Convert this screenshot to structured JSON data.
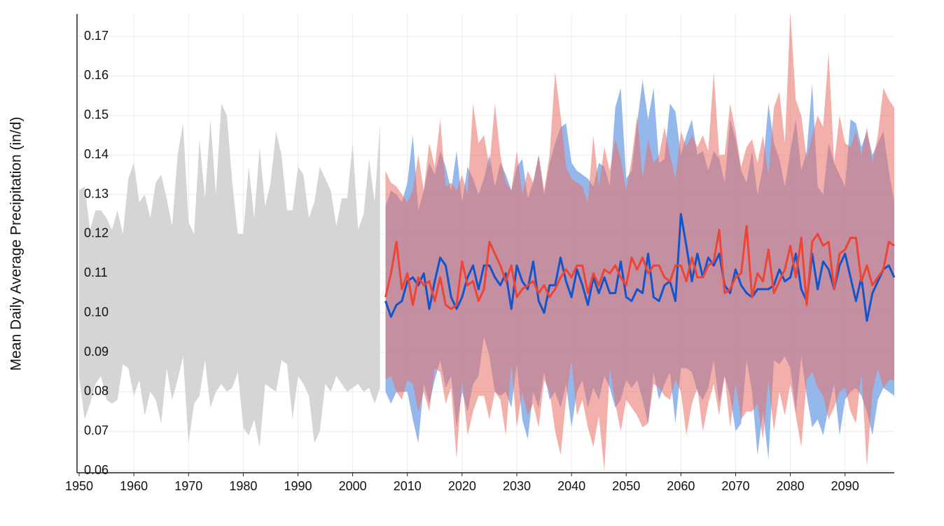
{
  "chart_data": {
    "type": "area",
    "y_label": "Mean Daily Average Precipitation (in/d)",
    "xlim": [
      1950,
      2099
    ],
    "ylim": [
      0.0595,
      0.1757
    ],
    "xticks": [
      1950,
      1960,
      1970,
      1980,
      1990,
      2000,
      2010,
      2020,
      2030,
      2040,
      2050,
      2060,
      2070,
      2080,
      2090
    ],
    "yticks": [
      0.06,
      0.07,
      0.08,
      0.09,
      {
        "value": 0.1,
        "label": "0.10"
      },
      0.11,
      0.12,
      0.13,
      0.14,
      0.15,
      0.16,
      0.17
    ],
    "grid": true,
    "series": [
      {
        "band_color": "#d5d5d5",
        "x": [
          1950,
          1951,
          1952,
          1953,
          1954,
          1955,
          1956,
          1957,
          1958,
          1959,
          1960,
          1961,
          1962,
          1963,
          1964,
          1965,
          1966,
          1967,
          1968,
          1969,
          1970,
          1971,
          1972,
          1973,
          1974,
          1975,
          1976,
          1977,
          1978,
          1979,
          1980,
          1981,
          1982,
          1983,
          1984,
          1985,
          1986,
          1987,
          1988,
          1989,
          1990,
          1991,
          1992,
          1993,
          1994,
          1995,
          1996,
          1997,
          1998,
          1999,
          2000,
          2001,
          2002,
          2003,
          2004,
          2005
        ],
        "upper": [
          0.131,
          0.132,
          0.121,
          0.126,
          0.126,
          0.124,
          0.121,
          0.126,
          0.12,
          0.134,
          0.138,
          0.128,
          0.13,
          0.124,
          0.133,
          0.135,
          0.129,
          0.122,
          0.14,
          0.148,
          0.123,
          0.12,
          0.144,
          0.129,
          0.149,
          0.13,
          0.153,
          0.15,
          0.133,
          0.12,
          0.12,
          0.137,
          0.124,
          0.142,
          0.127,
          0.133,
          0.146,
          0.14,
          0.126,
          0.126,
          0.137,
          0.135,
          0.124,
          0.128,
          0.137,
          0.134,
          0.131,
          0.122,
          0.129,
          0.129,
          0.143,
          0.121,
          0.125,
          0.139,
          0.128,
          0.148
        ],
        "lower": [
          0.084,
          0.073,
          0.077,
          0.082,
          0.084,
          0.078,
          0.077,
          0.078,
          0.087,
          0.086,
          0.079,
          0.083,
          0.074,
          0.08,
          0.078,
          0.072,
          0.086,
          0.078,
          0.083,
          0.089,
          0.067,
          0.077,
          0.079,
          0.088,
          0.076,
          0.08,
          0.082,
          0.08,
          0.081,
          0.085,
          0.071,
          0.069,
          0.073,
          0.066,
          0.082,
          0.081,
          0.08,
          0.088,
          0.087,
          0.073,
          0.084,
          0.082,
          0.079,
          0.067,
          0.07,
          0.082,
          0.08,
          0.084,
          0.082,
          0.08,
          0.081,
          0.082,
          0.08,
          0.081,
          0.077,
          0.081
        ]
      },
      {
        "band_color": "#8fb4ea",
        "color": "#1155cc",
        "x": [
          2006,
          2007,
          2008,
          2009,
          2010,
          2011,
          2012,
          2013,
          2014,
          2015,
          2016,
          2017,
          2018,
          2019,
          2020,
          2021,
          2022,
          2023,
          2024,
          2025,
          2026,
          2027,
          2028,
          2029,
          2030,
          2031,
          2032,
          2033,
          2034,
          2035,
          2036,
          2037,
          2038,
          2039,
          2040,
          2041,
          2042,
          2043,
          2044,
          2045,
          2046,
          2047,
          2048,
          2049,
          2050,
          2051,
          2052,
          2053,
          2054,
          2055,
          2056,
          2057,
          2058,
          2059,
          2060,
          2061,
          2062,
          2063,
          2064,
          2065,
          2066,
          2067,
          2068,
          2069,
          2070,
          2071,
          2072,
          2073,
          2074,
          2075,
          2076,
          2077,
          2078,
          2079,
          2080,
          2081,
          2082,
          2083,
          2084,
          2085,
          2086,
          2087,
          2088,
          2089,
          2090,
          2091,
          2092,
          2093,
          2094,
          2095,
          2096,
          2097,
          2098,
          2099
        ],
        "upper": [
          0.127,
          0.131,
          0.13,
          0.128,
          0.133,
          0.145,
          0.126,
          0.131,
          0.138,
          0.135,
          0.141,
          0.137,
          0.131,
          0.141,
          0.128,
          0.137,
          0.134,
          0.13,
          0.134,
          0.14,
          0.132,
          0.138,
          0.135,
          0.131,
          0.137,
          0.139,
          0.129,
          0.133,
          0.14,
          0.13,
          0.138,
          0.143,
          0.147,
          0.148,
          0.138,
          0.136,
          0.135,
          0.134,
          0.132,
          0.138,
          0.137,
          0.132,
          0.152,
          0.157,
          0.134,
          0.136,
          0.148,
          0.159,
          0.149,
          0.157,
          0.138,
          0.139,
          0.153,
          0.151,
          0.14,
          0.145,
          0.149,
          0.14,
          0.141,
          0.136,
          0.141,
          0.139,
          0.133,
          0.149,
          0.144,
          0.136,
          0.133,
          0.141,
          0.13,
          0.137,
          0.153,
          0.143,
          0.139,
          0.132,
          0.141,
          0.149,
          0.136,
          0.141,
          0.158,
          0.132,
          0.13,
          0.143,
          0.138,
          0.135,
          0.132,
          0.149,
          0.148,
          0.142,
          0.146,
          0.14,
          0.143,
          0.146,
          0.136,
          0.128
        ],
        "lower": [
          0.08,
          0.077,
          0.08,
          0.08,
          0.08,
          0.073,
          0.067,
          0.082,
          0.077,
          0.083,
          0.088,
          0.081,
          0.084,
          0.071,
          0.08,
          0.075,
          0.082,
          0.084,
          0.094,
          0.089,
          0.08,
          0.079,
          0.08,
          0.076,
          0.087,
          0.073,
          0.068,
          0.08,
          0.076,
          0.085,
          0.078,
          0.08,
          0.076,
          0.082,
          0.071,
          0.08,
          0.083,
          0.076,
          0.081,
          0.078,
          0.084,
          0.081,
          0.076,
          0.078,
          0.083,
          0.081,
          0.083,
          0.078,
          0.072,
          0.085,
          0.078,
          0.082,
          0.085,
          0.072,
          0.086,
          0.086,
          0.085,
          0.08,
          0.078,
          0.081,
          0.088,
          0.077,
          0.084,
          0.079,
          0.07,
          0.072,
          0.088,
          0.08,
          0.064,
          0.075,
          0.063,
          0.088,
          0.087,
          0.089,
          0.086,
          0.075,
          0.089,
          0.079,
          0.071,
          0.073,
          0.069,
          0.076,
          0.082,
          0.069,
          0.078,
          0.08,
          0.081,
          0.079,
          0.075,
          0.069,
          0.078,
          0.081,
          0.08,
          0.079
        ],
        "values": [
          0.103,
          0.099,
          0.102,
          0.103,
          0.108,
          0.109,
          0.107,
          0.11,
          0.101,
          0.108,
          0.114,
          0.112,
          0.104,
          0.101,
          0.104,
          0.109,
          0.112,
          0.106,
          0.112,
          0.112,
          0.109,
          0.107,
          0.11,
          0.101,
          0.112,
          0.108,
          0.106,
          0.113,
          0.103,
          0.1,
          0.107,
          0.107,
          0.114,
          0.108,
          0.104,
          0.111,
          0.107,
          0.102,
          0.109,
          0.105,
          0.109,
          0.105,
          0.105,
          0.113,
          0.104,
          0.103,
          0.106,
          0.105,
          0.115,
          0.104,
          0.103,
          0.107,
          0.108,
          0.103,
          0.125,
          0.117,
          0.108,
          0.115,
          0.109,
          0.114,
          0.112,
          0.115,
          0.107,
          0.105,
          0.111,
          0.107,
          0.105,
          0.104,
          0.106,
          0.106,
          0.106,
          0.107,
          0.111,
          0.108,
          0.109,
          0.115,
          0.106,
          0.103,
          0.115,
          0.106,
          0.113,
          0.111,
          0.106,
          0.112,
          0.115,
          0.109,
          0.103,
          0.109,
          0.098,
          0.105,
          0.108,
          0.111,
          0.112,
          0.109
        ]
      },
      {
        "band_color": "#e96e64",
        "color": "#ee4433",
        "x": [
          2006,
          2007,
          2008,
          2009,
          2010,
          2011,
          2012,
          2013,
          2014,
          2015,
          2016,
          2017,
          2018,
          2019,
          2020,
          2021,
          2022,
          2023,
          2024,
          2025,
          2026,
          2027,
          2028,
          2029,
          2030,
          2031,
          2032,
          2033,
          2034,
          2035,
          2036,
          2037,
          2038,
          2039,
          2040,
          2041,
          2042,
          2043,
          2044,
          2045,
          2046,
          2047,
          2048,
          2049,
          2050,
          2051,
          2052,
          2053,
          2054,
          2055,
          2056,
          2057,
          2058,
          2059,
          2060,
          2061,
          2062,
          2063,
          2064,
          2065,
          2066,
          2067,
          2068,
          2069,
          2070,
          2071,
          2072,
          2073,
          2074,
          2075,
          2076,
          2077,
          2078,
          2079,
          2080,
          2081,
          2082,
          2083,
          2084,
          2085,
          2086,
          2087,
          2088,
          2089,
          2090,
          2091,
          2092,
          2093,
          2094,
          2095,
          2096,
          2097,
          2098,
          2099
        ],
        "upper": [
          0.136,
          0.133,
          0.132,
          0.13,
          0.128,
          0.131,
          0.14,
          0.131,
          0.143,
          0.137,
          0.149,
          0.132,
          0.133,
          0.131,
          0.135,
          0.13,
          0.153,
          0.143,
          0.145,
          0.137,
          0.153,
          0.14,
          0.133,
          0.131,
          0.141,
          0.13,
          0.136,
          0.133,
          0.14,
          0.131,
          0.14,
          0.161,
          0.15,
          0.137,
          0.134,
          0.133,
          0.132,
          0.128,
          0.145,
          0.132,
          0.142,
          0.136,
          0.144,
          0.139,
          0.131,
          0.139,
          0.15,
          0.134,
          0.144,
          0.138,
          0.14,
          0.147,
          0.14,
          0.134,
          0.146,
          0.142,
          0.145,
          0.142,
          0.145,
          0.141,
          0.161,
          0.14,
          0.14,
          0.153,
          0.146,
          0.137,
          0.142,
          0.144,
          0.138,
          0.145,
          0.135,
          0.152,
          0.156,
          0.143,
          0.176,
          0.154,
          0.15,
          0.139,
          0.145,
          0.15,
          0.147,
          0.166,
          0.138,
          0.15,
          0.143,
          0.142,
          0.146,
          0.14,
          0.147,
          0.138,
          0.145,
          0.157,
          0.154,
          0.152
        ],
        "lower": [
          0.083,
          0.084,
          0.08,
          0.078,
          0.083,
          0.082,
          0.075,
          0.08,
          0.075,
          0.086,
          0.085,
          0.077,
          0.081,
          0.063,
          0.083,
          0.069,
          0.075,
          0.079,
          0.079,
          0.073,
          0.08,
          0.078,
          0.069,
          0.087,
          0.071,
          0.08,
          0.074,
          0.077,
          0.071,
          0.083,
          0.08,
          0.07,
          0.064,
          0.078,
          0.088,
          0.074,
          0.078,
          0.071,
          0.066,
          0.074,
          0.06,
          0.086,
          0.077,
          0.07,
          0.078,
          0.076,
          0.074,
          0.071,
          0.072,
          0.082,
          0.081,
          0.079,
          0.078,
          0.083,
          0.08,
          0.069,
          0.077,
          0.081,
          0.07,
          0.077,
          0.082,
          0.074,
          0.084,
          0.071,
          0.082,
          0.073,
          0.075,
          0.075,
          0.077,
          0.068,
          0.083,
          0.07,
          0.08,
          0.074,
          0.082,
          0.074,
          0.066,
          0.083,
          0.085,
          0.081,
          0.079,
          0.073,
          0.076,
          0.08,
          0.081,
          0.075,
          0.072,
          0.085,
          0.061,
          0.08,
          0.086,
          0.081,
          0.083,
          0.083
        ],
        "values": [
          0.104,
          0.11,
          0.118,
          0.106,
          0.11,
          0.102,
          0.109,
          0.107,
          0.108,
          0.103,
          0.109,
          0.102,
          0.101,
          0.102,
          0.113,
          0.107,
          0.108,
          0.103,
          0.106,
          0.118,
          0.115,
          0.112,
          0.108,
          0.112,
          0.104,
          0.106,
          0.107,
          0.108,
          0.105,
          0.107,
          0.104,
          0.106,
          0.109,
          0.111,
          0.109,
          0.112,
          0.112,
          0.105,
          0.11,
          0.107,
          0.111,
          0.11,
          0.112,
          0.109,
          0.107,
          0.114,
          0.111,
          0.114,
          0.11,
          0.112,
          0.112,
          0.109,
          0.108,
          0.112,
          0.112,
          0.108,
          0.114,
          0.109,
          0.109,
          0.112,
          0.113,
          0.121,
          0.105,
          0.106,
          0.109,
          0.11,
          0.122,
          0.104,
          0.11,
          0.108,
          0.116,
          0.105,
          0.108,
          0.111,
          0.117,
          0.109,
          0.119,
          0.102,
          0.118,
          0.12,
          0.117,
          0.118,
          0.106,
          0.115,
          0.116,
          0.119,
          0.119,
          0.108,
          0.112,
          0.107,
          0.109,
          0.111,
          0.118,
          0.117
        ]
      }
    ]
  }
}
